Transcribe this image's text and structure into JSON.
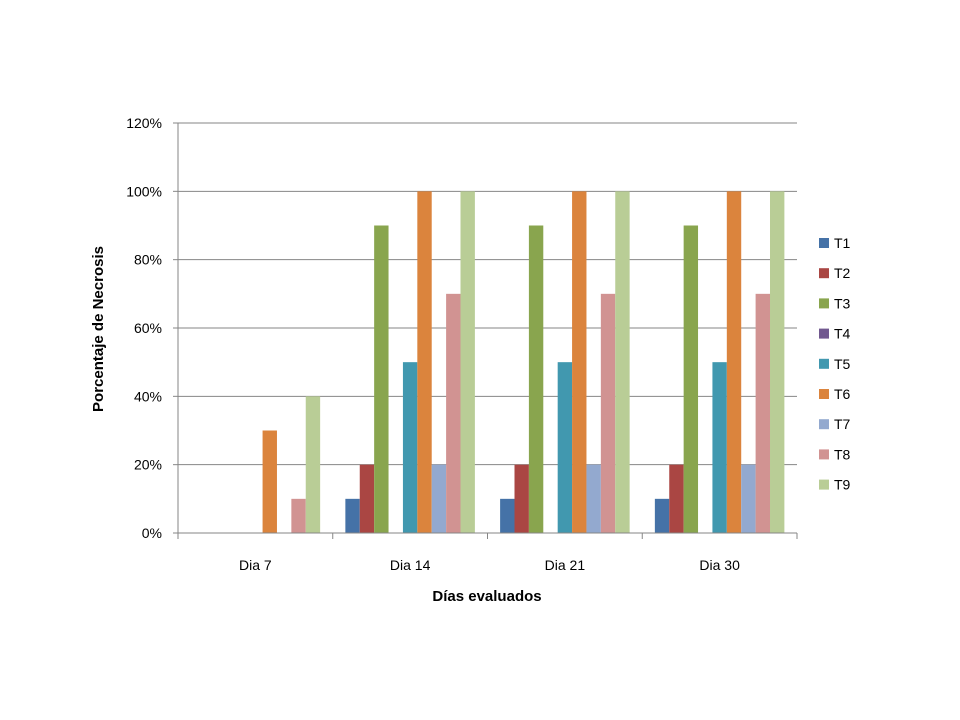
{
  "chart_data": {
    "type": "bar",
    "xlabel": "Días evaluados",
    "ylabel": "Porcentaje de Necrosis",
    "categories": [
      "Dia 7",
      "Dia 14",
      "Dia 21",
      "Dia 30"
    ],
    "ylim": [
      0,
      120
    ],
    "y_ticks": [
      "0%",
      "20%",
      "40%",
      "60%",
      "80%",
      "100%",
      "120%"
    ],
    "y_unit": "%",
    "grid": true,
    "legend_position": "right",
    "series": [
      {
        "name": "T1",
        "color": "#4572A7",
        "values": [
          0,
          10,
          10,
          10
        ]
      },
      {
        "name": "T2",
        "color": "#AA4643",
        "values": [
          0,
          20,
          20,
          20
        ]
      },
      {
        "name": "T3",
        "color": "#89A54E",
        "values": [
          0,
          90,
          90,
          90
        ]
      },
      {
        "name": "T4",
        "color": "#71588F",
        "values": [
          0,
          0,
          0,
          0
        ]
      },
      {
        "name": "T5",
        "color": "#4198AF",
        "values": [
          0,
          50,
          50,
          50
        ]
      },
      {
        "name": "T6",
        "color": "#DB843D",
        "values": [
          30,
          100,
          100,
          100
        ]
      },
      {
        "name": "T7",
        "color": "#93A9CF",
        "values": [
          0,
          20,
          20,
          20
        ]
      },
      {
        "name": "T8",
        "color": "#D19392",
        "values": [
          10,
          70,
          70,
          70
        ]
      },
      {
        "name": "T9",
        "color": "#B9CD96",
        "values": [
          40,
          100,
          100,
          100
        ]
      }
    ]
  }
}
